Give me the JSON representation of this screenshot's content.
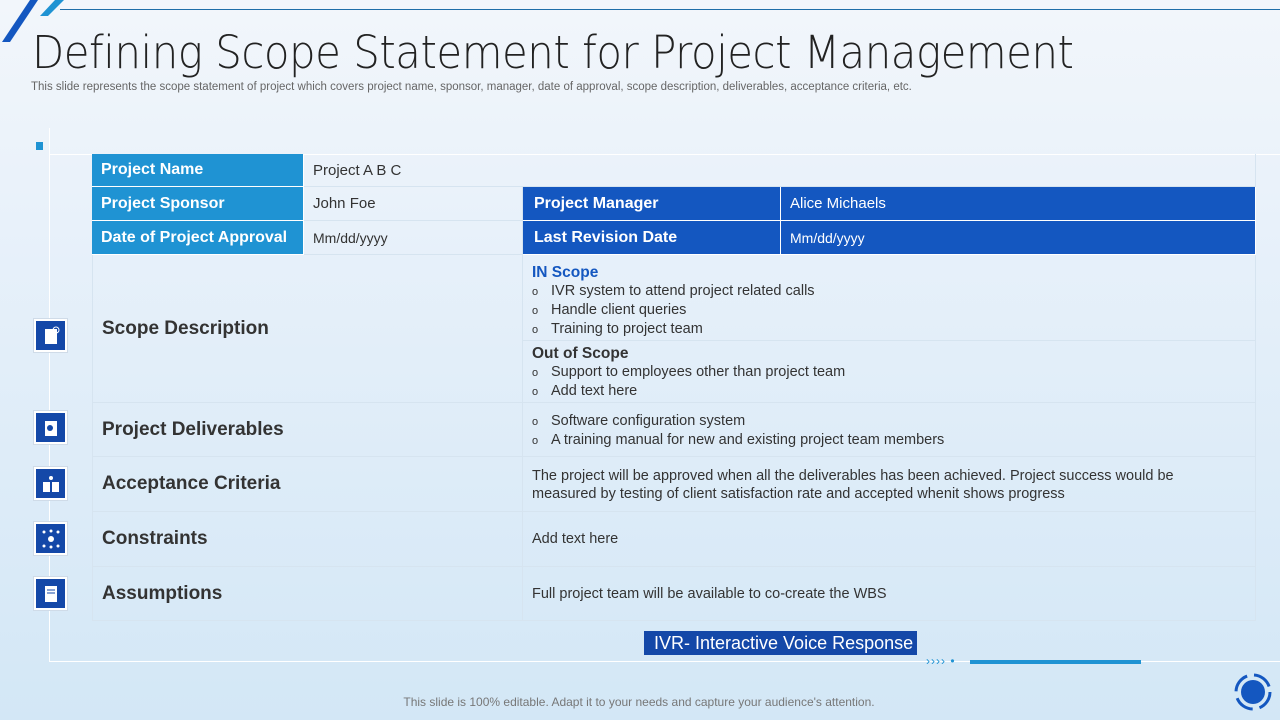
{
  "title": "Defining Scope Statement for Project Management",
  "subtitle": "This slide represents the scope statement of project which covers project name, sponsor, manager, date of approval, scope description, deliverables, acceptance criteria, etc.",
  "table": {
    "project_name_label": "Project Name",
    "project_name": "Project  A B C",
    "sponsor_label": "Project Sponsor",
    "sponsor": "John Foe",
    "manager_label": "Project Manager",
    "manager": "Alice Michaels",
    "approval_label": "Date of Project Approval",
    "approval": "Mm/dd/yyyy",
    "revision_label": "Last Revision Date",
    "revision": "Mm/dd/yyyy",
    "scope_label": "Scope Description",
    "in_scope_title": "IN Scope",
    "in_scope": [
      "IVR system to attend project related calls",
      "Handle client queries",
      "Training to project team"
    ],
    "out_scope_title": "Out of Scope",
    "out_scope": [
      "Support to employees other than project team",
      "Add text here"
    ],
    "deliverables_label": "Project Deliverables",
    "deliverables": [
      "Software configuration system",
      "A training manual for new and existing project team members"
    ],
    "acceptance_label": "Acceptance Criteria",
    "acceptance": "The project will be approved when all the deliverables has been achieved. Project success would be measured by testing of client satisfaction rate and accepted whenit shows progress",
    "constraints_label": "Constraints",
    "constraints": "Add text here",
    "assumptions_label": "Assumptions",
    "assumptions": "Full project team will be available to co-create the WBS",
    "bullet": "o"
  },
  "note": "IVR- Interactive Voice Response",
  "footer": "This slide is 100% editable. Adapt it to your needs and capture your audience's attention.",
  "colors": {
    "light_blue": "#1f93d3",
    "dark_blue": "#1457c0",
    "icon_bg": "#1448a8"
  }
}
